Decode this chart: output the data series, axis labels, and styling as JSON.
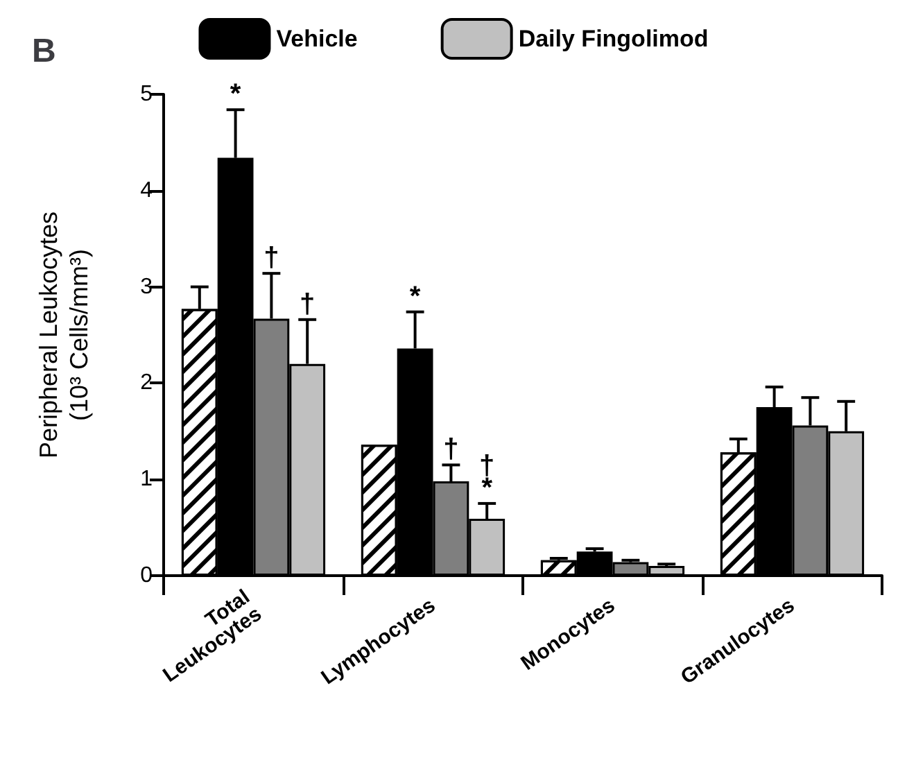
{
  "chart_data": {
    "type": "bar",
    "title": "B",
    "ylabel": "Peripheral Leukocytes\n(10³ Cells/mm³)",
    "categories": [
      "Total\nLeukocytes",
      "Lymphocytes",
      "Monocytes",
      "Granulocytes"
    ],
    "series": [
      {
        "color": "#ffffff",
        "values": [
          2.77,
          1.36,
          0.16,
          1.28
        ],
        "errors": [
          0.23,
          null,
          0.02,
          0.14
        ]
      },
      {
        "name": "Vehicle",
        "color": "#000000",
        "values": [
          4.34,
          2.36,
          0.25,
          1.75
        ],
        "errors": [
          0.5,
          0.38,
          0.03,
          0.21
        ],
        "value_labels": [
          "*",
          "*",
          null,
          null
        ]
      },
      {
        "color": "#7f7f7f",
        "values": [
          2.67,
          0.98,
          0.14,
          1.56
        ],
        "errors": [
          0.47,
          0.17,
          0.02,
          0.29
        ],
        "value_labels": [
          "†",
          "†",
          null,
          null
        ]
      },
      {
        "name": "Daily Fingolimod",
        "color": "#c0c0c0",
        "values": [
          2.2,
          0.59,
          0.1,
          1.5
        ],
        "errors": [
          0.46,
          0.16,
          0.02,
          0.31
        ],
        "value_labels": [
          "†",
          "†\n*",
          null,
          null
        ]
      }
    ],
    "ylim": [
      0,
      5
    ],
    "yticks": [
      0,
      1,
      2,
      3,
      4,
      5
    ],
    "grid": false,
    "legend": "top"
  }
}
